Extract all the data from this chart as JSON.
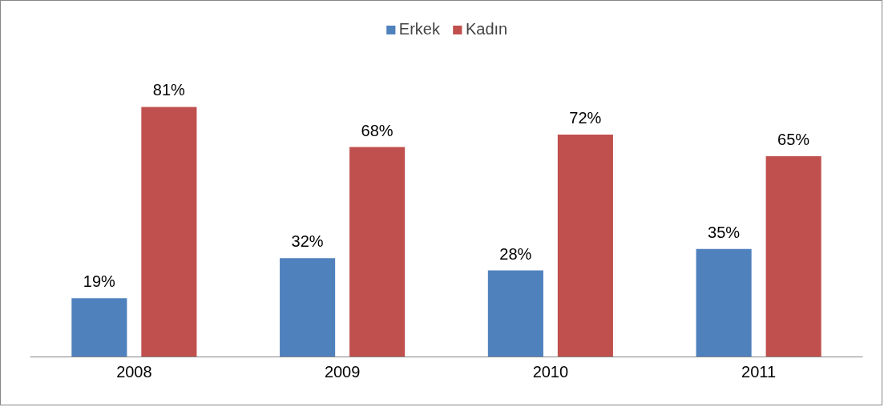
{
  "chart_data": {
    "type": "bar",
    "categories": [
      "2008",
      "2009",
      "2010",
      "2011"
    ],
    "series": [
      {
        "name": "Erkek",
        "color": "#4f81bd",
        "values": [
          19,
          32,
          28,
          35
        ],
        "value_labels": [
          "19%",
          "32%",
          "28%",
          "35%"
        ]
      },
      {
        "name": "Kadın",
        "color": "#c0504d",
        "values": [
          81,
          68,
          72,
          65
        ],
        "value_labels": [
          "81%",
          "68%",
          "72%",
          "65%"
        ]
      }
    ],
    "legend": "top",
    "grid": false
  }
}
